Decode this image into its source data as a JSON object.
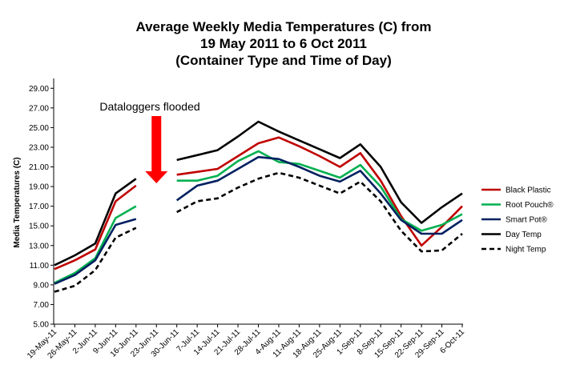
{
  "chart_data": {
    "type": "line",
    "title": [
      "Average Weekly Media Temperatures (C) from",
      "19 May 2011 to 6 Oct 2011",
      "(Container Type and Time of Day)"
    ],
    "xlabel": "",
    "ylabel": "Media Temperatures (C)",
    "ylim": [
      5.0,
      30.0
    ],
    "yticks": [
      "5.00",
      "7.00",
      "9.00",
      "11.00",
      "13.00",
      "15.00",
      "17.00",
      "19.00",
      "21.00",
      "23.00",
      "25.00",
      "27.00",
      "29.00"
    ],
    "categories": [
      "19-May-11",
      "26-May-11",
      "2-Jun-11",
      "9-Jun-11",
      "16-Jun-11",
      "23-Jun-11",
      "30-Jun-11",
      "7-Jul-11",
      "14-Jul-11",
      "21-Jul-11",
      "28-Jul-11",
      "4-Aug-11",
      "11-Aug-11",
      "18-Aug-11",
      "25-Aug-11",
      "1-Sep-11",
      "8-Sep-11",
      "15-Sep-11",
      "22-Sep-11",
      "29-Sep-11",
      "6-Oct-11"
    ],
    "series": [
      {
        "name": "Black Plastic",
        "color": "#c00000",
        "dash": false,
        "values": [
          10.6,
          11.5,
          12.6,
          17.5,
          19.1,
          null,
          20.2,
          20.5,
          20.8,
          22.1,
          23.4,
          24.0,
          23.1,
          22.1,
          21.0,
          22.4,
          19.6,
          16.0,
          13.0,
          14.9,
          17.0
        ]
      },
      {
        "name": "Root Pouch®",
        "color": "#00b050",
        "dash": false,
        "values": [
          9.2,
          10.2,
          11.7,
          15.8,
          17.0,
          null,
          19.6,
          19.6,
          20.1,
          21.6,
          22.6,
          21.5,
          21.3,
          20.6,
          19.9,
          21.2,
          19.0,
          15.7,
          14.5,
          15.1,
          16.2
        ]
      },
      {
        "name": "Smart Pot®",
        "color": "#002060",
        "dash": false,
        "values": [
          9.1,
          10.0,
          11.5,
          15.1,
          15.7,
          null,
          17.6,
          19.1,
          19.6,
          20.8,
          22.0,
          21.8,
          21.0,
          20.1,
          19.5,
          20.6,
          18.3,
          15.6,
          14.2,
          14.2,
          15.6
        ]
      },
      {
        "name": "Day Temp",
        "color": "#000000",
        "dash": false,
        "values": [
          11.0,
          12.0,
          13.2,
          18.3,
          19.8,
          null,
          21.7,
          22.2,
          22.7,
          24.1,
          25.6,
          24.6,
          23.7,
          22.8,
          21.9,
          23.3,
          21.0,
          17.4,
          15.3,
          16.9,
          18.3
        ]
      },
      {
        "name": "Night Temp",
        "color": "#000000",
        "dash": true,
        "values": [
          8.3,
          8.9,
          10.5,
          13.8,
          14.8,
          null,
          16.4,
          17.5,
          17.8,
          18.9,
          19.8,
          20.4,
          19.9,
          19.1,
          18.3,
          19.5,
          17.5,
          14.5,
          12.4,
          12.5,
          14.2
        ]
      }
    ],
    "legend_position": "right",
    "grid": false,
    "annotation": {
      "text": "Dataloggers flooded",
      "arrow_color": "#ff0000",
      "category": "23-Jun-11"
    }
  }
}
